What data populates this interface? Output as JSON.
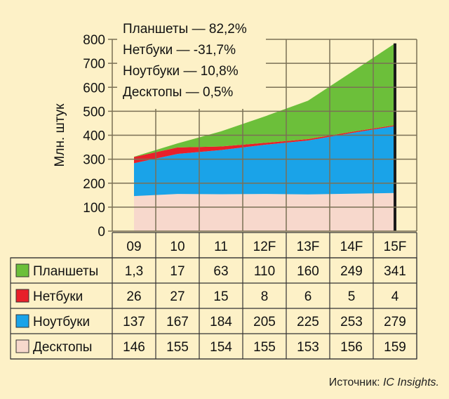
{
  "chart_data": {
    "type": "area",
    "stacked": true,
    "categories": [
      "09",
      "10",
      "11",
      "12F",
      "13F",
      "14F",
      "15F"
    ],
    "ylabel": "Млн. штук",
    "ylim": [
      0,
      800
    ],
    "yticks": [
      0,
      100,
      200,
      300,
      400,
      500,
      600,
      700,
      800
    ],
    "grid": true,
    "series": [
      {
        "name": "Десктопы",
        "color": "#f7d8cc",
        "values": [
          146,
          155,
          154,
          155,
          153,
          156,
          159
        ]
      },
      {
        "name": "Ноутбуки",
        "color": "#1aa3e8",
        "values": [
          137,
          167,
          184,
          205,
          225,
          253,
          279
        ]
      },
      {
        "name": "Нетбуки",
        "color": "#e8202a",
        "values": [
          26,
          27,
          15,
          8,
          6,
          5,
          4
        ]
      },
      {
        "name": "Планшеты",
        "color": "#6cbf3a",
        "values": [
          1.3,
          17,
          63,
          110,
          160,
          249,
          341
        ]
      }
    ],
    "table_rows": [
      {
        "name": "Планшеты",
        "color": "#6cbf3a",
        "cells": [
          "1,3",
          "17",
          "63",
          "110",
          "160",
          "249",
          "341"
        ]
      },
      {
        "name": "Нетбуки",
        "color": "#e8202a",
        "cells": [
          "26",
          "27",
          "15",
          "8",
          "6",
          "5",
          "4"
        ]
      },
      {
        "name": "Ноутбуки",
        "color": "#1aa3e8",
        "cells": [
          "137",
          "167",
          "184",
          "205",
          "225",
          "253",
          "279"
        ]
      },
      {
        "name": "Десктопы",
        "color": "#f7d8cc",
        "cells": [
          "146",
          "155",
          "154",
          "155",
          "153",
          "156",
          "159"
        ]
      }
    ],
    "annotations": [
      "Планшеты — 82,2%",
      "Нетбуки — -31,7%",
      "Ноутбуки — 10,8%",
      "Десктопы — 0,5%"
    ]
  },
  "source": {
    "prefix": "Источник: ",
    "name": "IC Insights."
  }
}
